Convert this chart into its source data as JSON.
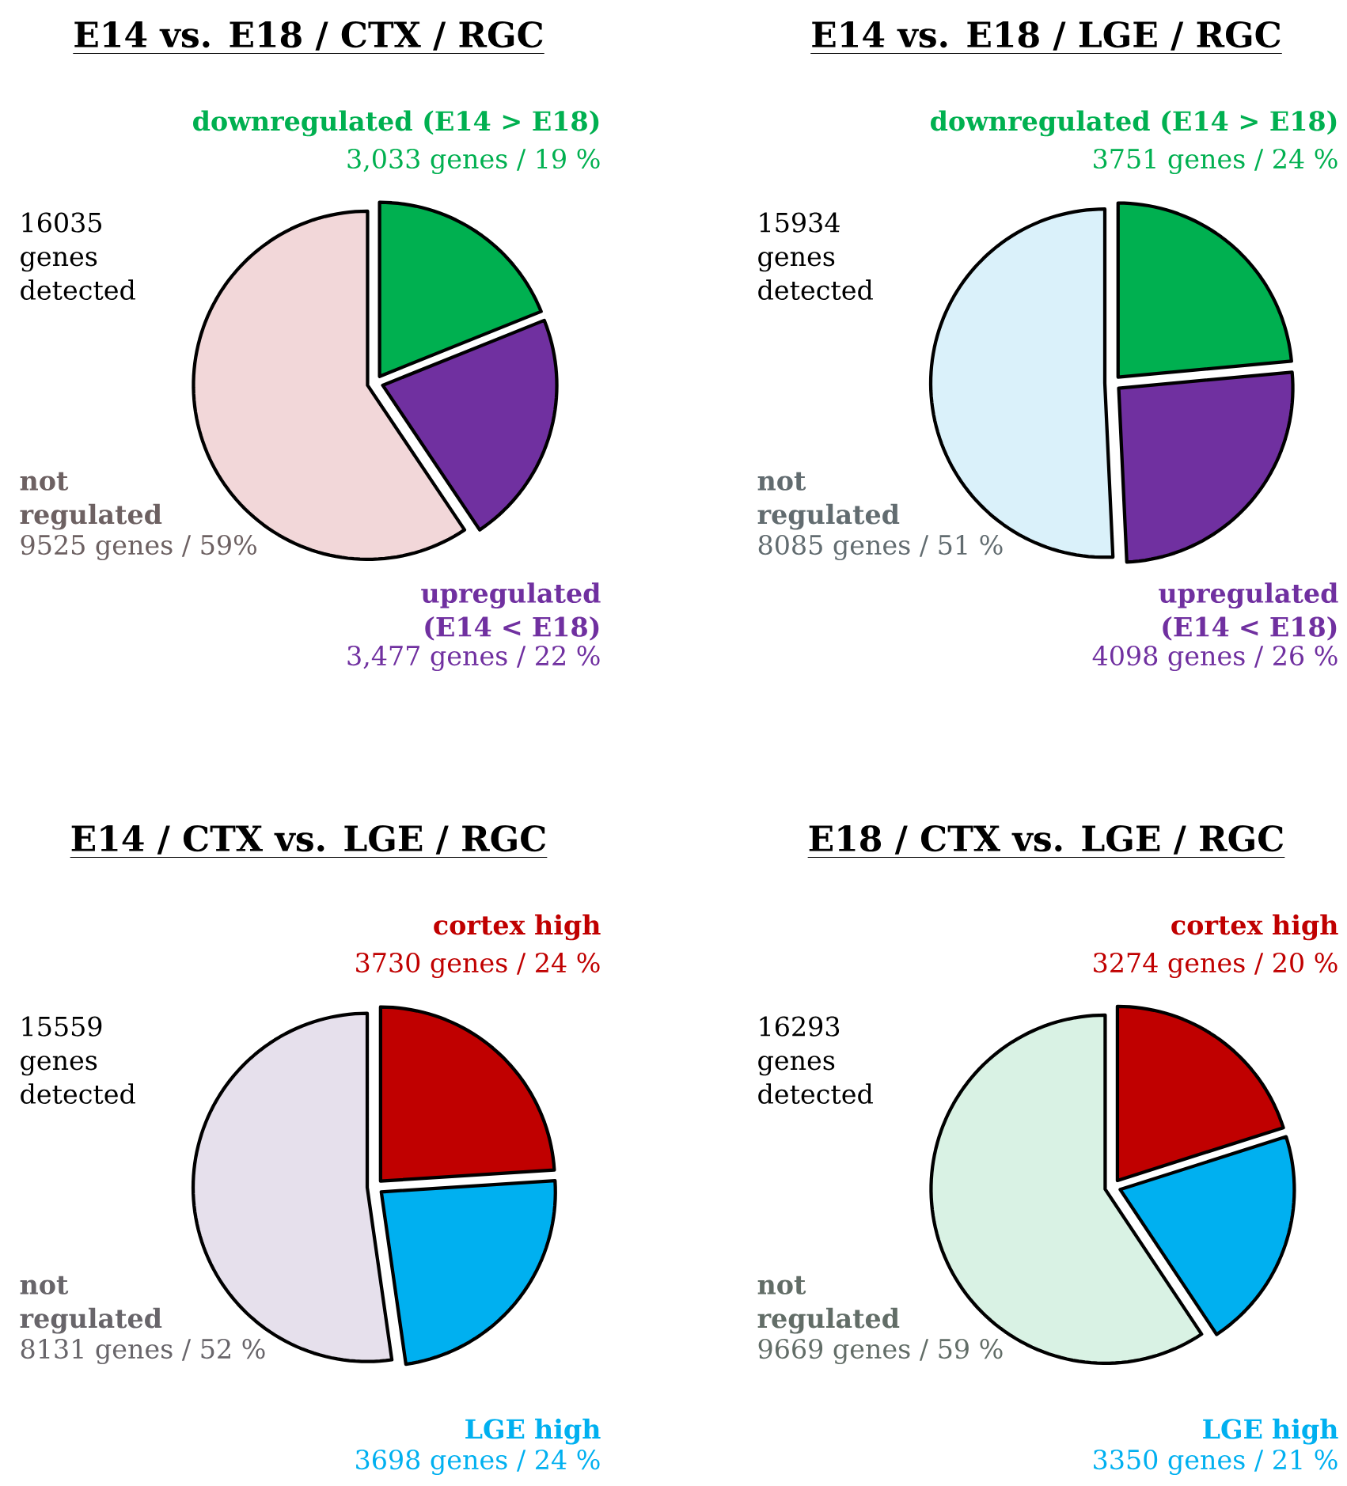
{
  "chart_data": [
    {
      "type": "pie",
      "title": "E14 vs. E18 / CTX / RGC",
      "categories": [
        "downregulated (E14 > E18)",
        "upregulated (E14 < E18)",
        "not regulated"
      ],
      "values": [
        3033,
        3477,
        9525
      ],
      "colors": [
        "#00b050",
        "#7030a0",
        "#f2d7d9"
      ],
      "value_labels": [
        "3,033 genes / 19 %",
        "3,477 genes / 22 %",
        "9525 genes / 59%"
      ],
      "annotations": [
        "16035 genes detected"
      ]
    },
    {
      "type": "pie",
      "title": "E14 vs. E18 / LGE / RGC",
      "categories": [
        "downregulated (E14 > E18)",
        "upregulated (E14 < E18)",
        "not regulated"
      ],
      "values": [
        3751,
        4098,
        8085
      ],
      "colors": [
        "#00b050",
        "#7030a0",
        "#daf1fa"
      ],
      "value_labels": [
        "3751 genes / 24 %",
        "4098 genes / 26 %",
        "8085 genes / 51 %"
      ],
      "annotations": [
        "15934 genes detected"
      ]
    },
    {
      "type": "pie",
      "title": "E14 / CTX vs. LGE / RGC",
      "categories": [
        "cortex high",
        "LGE high",
        "not regulated"
      ],
      "values": [
        3730,
        3698,
        8131
      ],
      "colors": [
        "#c00000",
        "#00b0f0",
        "#e6e0ec"
      ],
      "value_labels": [
        "3730 genes / 24 %",
        "3698 genes / 24 %",
        "8131 genes / 52 %"
      ],
      "annotations": [
        "15559 genes detected"
      ]
    },
    {
      "type": "pie",
      "title": "E18 / CTX vs. LGE / RGC",
      "categories": [
        "cortex high",
        "LGE high",
        "not regulated"
      ],
      "values": [
        3274,
        3350,
        9669
      ],
      "colors": [
        "#c00000",
        "#00b0f0",
        "#d9f2e4"
      ],
      "value_labels": [
        "3274 genes / 20 %",
        "3350 genes / 21 %",
        "9669 genes / 59 %"
      ],
      "annotations": [
        "16293 genes detected"
      ]
    }
  ]
}
